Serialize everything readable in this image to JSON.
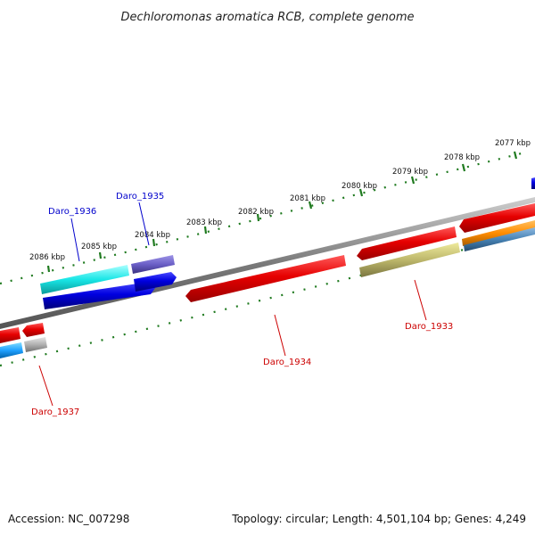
{
  "header": {
    "title": "Dechloromonas aromatica RCB, complete genome"
  },
  "footer": {
    "accession": "Accession: NC_007298",
    "summary": "Topology: circular; Length: 4,501,104 bp; Genes: 4,249"
  },
  "scale": {
    "ticks": [
      "2086 kbp",
      "2085 kbp",
      "2084 kbp",
      "2083 kbp",
      "2082 kbp",
      "2081 kbp",
      "2080 kbp",
      "2079 kbp",
      "2078 kbp",
      "2077 kbp"
    ]
  },
  "genes": {
    "labeled": [
      {
        "id": "Daro_1936",
        "strand": "forward",
        "color": "#0000cc"
      },
      {
        "id": "Daro_1935",
        "strand": "forward",
        "color": "#0000cc"
      },
      {
        "id": "Daro_1934",
        "strand": "reverse",
        "color": "#cc0000"
      },
      {
        "id": "Daro_1933",
        "strand": "reverse",
        "color": "#cc0000"
      },
      {
        "id": "Daro_1937",
        "strand": "reverse",
        "color": "#cc0000"
      }
    ]
  },
  "colors": {
    "backbone": "#888888",
    "tick": "#1f7a1f",
    "cds_red": "#e80000",
    "cds_blue": "#0000e0",
    "cds_cyan": "#19e6e6",
    "cds_purple": "#6b5fc7",
    "cds_olive": "#bdb76b",
    "cds_orange": "#ff8c00",
    "cds_steel": "#4682b4",
    "cds_grey": "#b0b0b0"
  }
}
